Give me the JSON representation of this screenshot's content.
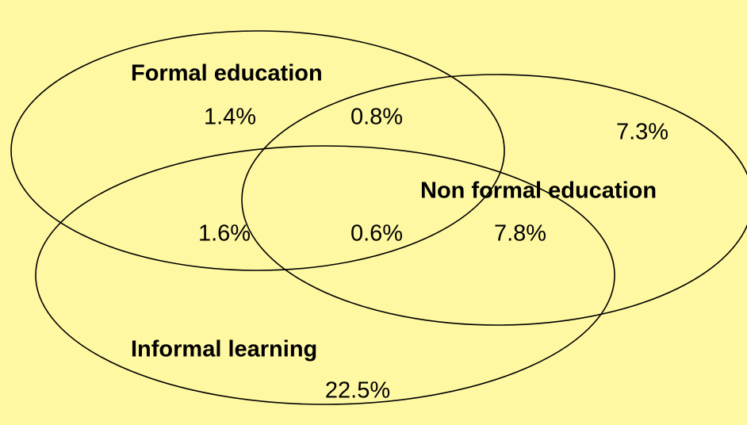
{
  "sets": [
    {
      "label": "Formal education"
    },
    {
      "label": "Non formal education"
    },
    {
      "label": "Informal learning"
    }
  ],
  "regions": [
    {
      "value": "1.4%"
    },
    {
      "value": "0.8%"
    },
    {
      "value": "7.3%"
    },
    {
      "value": "1.6%"
    },
    {
      "value": "0.6%"
    },
    {
      "value": "7.8%"
    },
    {
      "value": "22.5%"
    }
  ]
}
